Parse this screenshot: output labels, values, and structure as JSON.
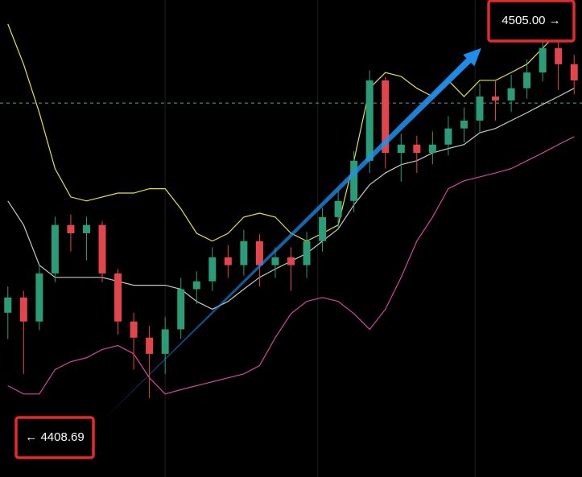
{
  "chart_data": {
    "type": "candlestick",
    "xlim": [
      -0.5,
      36.5
    ],
    "ylim": [
      4400.4,
      4509.6
    ],
    "up_color": "#2c9c78",
    "down_color": "#e2464d",
    "grid_color": "#1e1e1e",
    "xgrid": [
      10,
      19.7,
      29.7
    ],
    "reference_line": 4486.0,
    "open": [
      4438.0,
      4441.5,
      4436.0,
      4447.0,
      4458.1,
      4456.2,
      4458.1,
      4447.0,
      4436.0,
      4432.3,
      4428.6,
      4434.2,
      4443.4,
      4445.2,
      4450.7,
      4448.9,
      4454.4,
      4448.9,
      4450.7,
      4448.9,
      4454.4,
      4459.9,
      4463.6,
      4472.8,
      4491.2,
      4474.6,
      4476.5,
      4474.6,
      4476.5,
      4480.2,
      4482.0,
      4487.5,
      4486.6,
      4489.4,
      4493.0,
      4498.6,
      4494.9
    ],
    "high": [
      4444.0,
      4443.0,
      4449.0,
      4460.0,
      4460.5,
      4460.0,
      4459.0,
      4448.0,
      4438.0,
      4435.0,
      4437.0,
      4446.0,
      4447.5,
      4453.0,
      4453.5,
      4457.0,
      4456.0,
      4453.0,
      4453.0,
      4456.5,
      4462.0,
      4466.0,
      4475.0,
      4493.5,
      4492.0,
      4479.0,
      4478.5,
      4479.5,
      4483.0,
      4485.0,
      4490.5,
      4491.0,
      4492.5,
      4496.0,
      4503.0,
      4502.0,
      4497.0
    ],
    "low": [
      4432.0,
      4424.0,
      4434.0,
      4445.0,
      4452.0,
      4450.0,
      4445.0,
      4433.0,
      4425.0,
      4418.5,
      4424.0,
      4432.0,
      4440.0,
      4443.0,
      4446.0,
      4446.5,
      4444.0,
      4446.0,
      4443.0,
      4446.0,
      4452.0,
      4457.0,
      4461.0,
      4470.0,
      4471.0,
      4468.0,
      4470.0,
      4472.0,
      4474.0,
      4477.0,
      4479.0,
      4482.0,
      4484.0,
      4487.0,
      4491.0,
      4489.0,
      4488.0
    ],
    "close": [
      4441.5,
      4436.0,
      4447.0,
      4458.1,
      4456.2,
      4458.1,
      4447.0,
      4436.0,
      4432.3,
      4428.6,
      4434.2,
      4443.4,
      4445.2,
      4450.7,
      4448.9,
      4454.4,
      4448.9,
      4450.7,
      4448.9,
      4454.4,
      4459.9,
      4463.6,
      4472.8,
      4491.2,
      4474.6,
      4476.5,
      4474.6,
      4476.5,
      4480.2,
      4482.0,
      4487.5,
      4486.6,
      4489.4,
      4493.0,
      4498.6,
      4494.9,
      4491.2
    ],
    "series": [
      {
        "color": "#e6e23a",
        "values": [
          4504.1,
          4494.9,
          4483.8,
          4471.0,
          4464.5,
          4463.6,
          4464.5,
          4465.4,
          4465.4,
          4466.4,
          4466.4,
          4461.8,
          4456.2,
          4454.4,
          4456.2,
          4459.9,
          4460.8,
          4459.9,
          4456.2,
          4454.4,
          4456.2,
          4458.1,
          4472.8,
          4489.4,
          4493.0,
          4492.1,
          4489.4,
          4487.5,
          4491.2,
          4487.5,
          4491.2,
          4491.2,
          4493.0,
          4494.9,
          4498.6,
          4502.2,
          4501.3
        ]
      },
      {
        "color": "#c8c8c8",
        "values": [
          4463.6,
          4458.1,
          4448.9,
          4446.1,
          4446.1,
          4446.1,
          4446.1,
          4445.2,
          4444.3,
          4444.3,
          4444.3,
          4443.4,
          4440.6,
          4438.8,
          4440.6,
          4443.4,
          4446.1,
          4448.0,
          4449.8,
          4451.6,
          4454.4,
          4457.2,
          4462.7,
          4467.3,
          4470.0,
          4471.9,
          4472.8,
          4474.6,
          4475.6,
          4476.5,
          4479.2,
          4480.2,
          4482.0,
          4483.8,
          4485.7,
          4487.5,
          4489.4
        ]
      },
      {
        "color": "#d0489e",
        "values": [
          4421.3,
          4419.4,
          4419.4,
          4425.0,
          4426.8,
          4427.7,
          4429.6,
          4430.5,
          4428.6,
          4423.1,
          4419.4,
          4420.4,
          4421.3,
          4422.2,
          4423.1,
          4424.0,
          4425.9,
          4432.3,
          4437.8,
          4440.6,
          4441.5,
          4440.6,
          4437.8,
          4434.2,
          4438.8,
          4446.1,
          4454.4,
          4459.9,
          4466.4,
          4468.2,
          4469.1,
          4470.0,
          4471.0,
          4472.8,
          4474.6,
          4476.5,
          4478.3
        ]
      }
    ],
    "trend_arrow": {
      "color": "#1e90f0",
      "x": [
        6.05,
        30.1
      ],
      "y": [
        4413.4,
        4498.6
      ]
    },
    "price_labels": [
      {
        "value": 4505.0,
        "label": "4505.00 →"
      },
      {
        "value": 4408.69,
        "label": "← 4408.69"
      }
    ]
  }
}
